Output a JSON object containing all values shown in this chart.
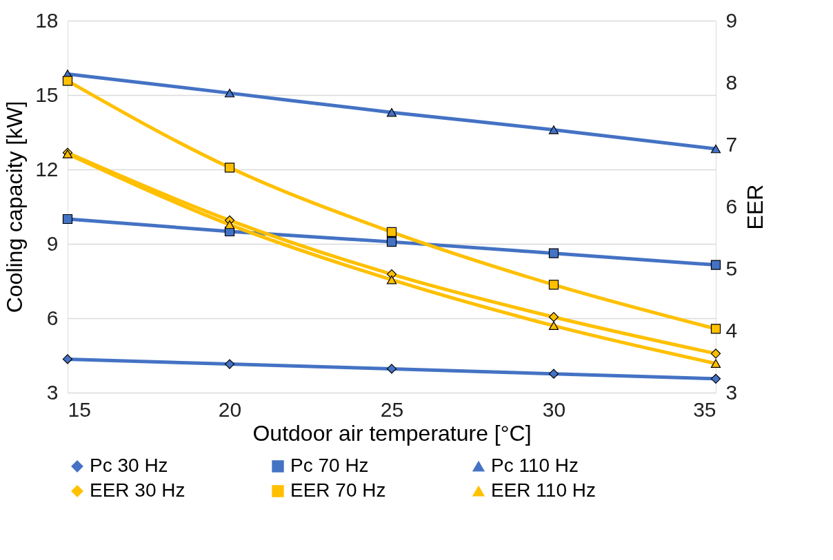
{
  "chart_data": {
    "type": "line",
    "xlabel": "Outdoor air temperature [°C]",
    "ylabel": "Cooling capacity [kW]",
    "y2label": "EER",
    "x": [
      15,
      20,
      25,
      30,
      35
    ],
    "xlim": [
      15,
      35
    ],
    "xticks": [
      15,
      20,
      25,
      30,
      35
    ],
    "ylim": [
      3,
      18
    ],
    "yticks": [
      3,
      6,
      9,
      12,
      15,
      18
    ],
    "y2lim": [
      3,
      9
    ],
    "y2ticks": [
      3,
      4,
      5,
      6,
      7,
      8,
      9
    ],
    "grid": "y",
    "legend": "bottom",
    "line_style": "solid",
    "series": [
      {
        "name": "Pc 30 Hz",
        "color": "#4472c4",
        "marker": "diamond",
        "values": [
          4.35,
          4.15,
          3.96,
          3.76,
          3.56
        ]
      },
      {
        "name": "Pc 70 Hz",
        "color": "#4472c4",
        "marker": "square",
        "values": [
          10.0,
          9.5,
          9.08,
          8.62,
          8.15
        ]
      },
      {
        "name": "Pc 110 Hz",
        "color": "#4472c4",
        "marker": "triangle",
        "values": [
          15.85,
          15.08,
          14.3,
          13.6,
          12.83
        ]
      },
      {
        "name": "EER 30 Hz",
        "color": "#ffc000",
        "marker": "diamond",
        "axis": "y2",
        "values": [
          6.87,
          5.78,
          4.91,
          4.22,
          3.63
        ]
      },
      {
        "name": "EER 70 Hz",
        "color": "#ffc000",
        "marker": "square",
        "axis": "y2",
        "values": [
          8.03,
          6.63,
          5.59,
          4.74,
          4.03
        ]
      },
      {
        "name": "EER 110 Hz",
        "color": "#ffc000",
        "marker": "triangle",
        "axis": "y2",
        "values": [
          6.85,
          5.71,
          4.82,
          4.08,
          3.47
        ]
      }
    ]
  }
}
